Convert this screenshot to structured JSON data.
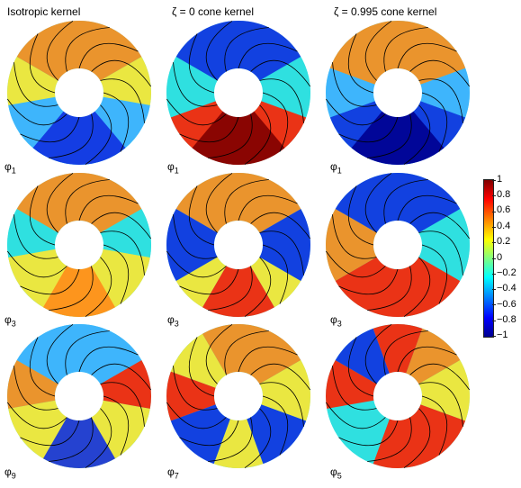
{
  "columns": [
    {
      "title": "Isotropic kernel"
    },
    {
      "title": "ζ = 0 cone kernel"
    },
    {
      "title": "ζ = 0.995 cone kernel"
    }
  ],
  "panels": [
    {
      "label_base": "φ",
      "label_sub": "1"
    },
    {
      "label_base": "φ",
      "label_sub": "1"
    },
    {
      "label_base": "φ",
      "label_sub": "1"
    },
    {
      "label_base": "φ",
      "label_sub": "3"
    },
    {
      "label_base": "φ",
      "label_sub": "3"
    },
    {
      "label_base": "φ",
      "label_sub": "3"
    },
    {
      "label_base": "φ",
      "label_sub": "9"
    },
    {
      "label_base": "φ",
      "label_sub": "7"
    },
    {
      "label_base": "φ",
      "label_sub": "5"
    }
  ],
  "colorbar": {
    "ticks": [
      "1",
      "0.8",
      "0.6",
      "0.4",
      "0.2",
      "0",
      "−0.2",
      "−0.4",
      "−0.6",
      "−0.8",
      "−1"
    ],
    "range": [
      -1,
      1
    ]
  },
  "colors": {
    "dark_red": "#7f0000",
    "red": "#ff2000",
    "orange": "#ff8c1a",
    "yellow": "#ffe830",
    "cyan": "#30e0e0",
    "sky": "#40b0ff",
    "blue": "#1030e0",
    "dark_blue": "#000090"
  }
}
